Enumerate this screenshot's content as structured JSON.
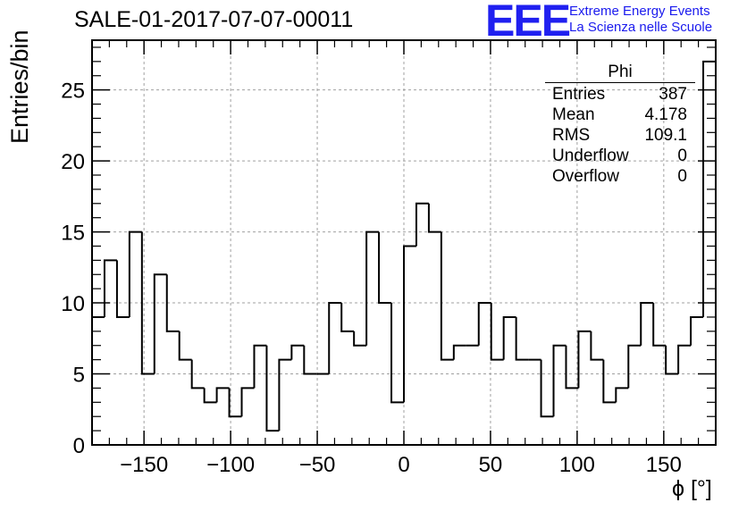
{
  "header": {
    "title": "SALE-01-2017-07-07-00011",
    "logo": "EEE",
    "logo_line1": "Extreme Energy Events",
    "logo_line2": "La Scienza nelle Scuole"
  },
  "stats": {
    "title": "Phi",
    "rows": [
      {
        "label": "Entries",
        "value": "387"
      },
      {
        "label": "Mean",
        "value": "4.178"
      },
      {
        "label": "RMS",
        "value": "109.1"
      },
      {
        "label": "Underflow",
        "value": "0"
      },
      {
        "label": "Overflow",
        "value": "0"
      }
    ]
  },
  "colors": {
    "line": "#000000",
    "grid": "#a0a0a0",
    "logo": "#2020f0"
  },
  "chart_data": {
    "type": "bar",
    "title": "SALE-01-2017-07-07-00011",
    "xlabel": "ϕ [°]",
    "ylabel": "Entries/bin",
    "xlim": [
      -180,
      180
    ],
    "ylim": [
      0,
      28.5
    ],
    "bin_width": 7.2,
    "grid": true,
    "xticks": [
      -150,
      -100,
      -50,
      0,
      50,
      100,
      150
    ],
    "xtick_labels": [
      "−150",
      "−100",
      "−50",
      "0",
      "50",
      "100",
      "150"
    ],
    "yticks": [
      0,
      5,
      10,
      15,
      20,
      25
    ],
    "ytick_labels": [
      "0",
      "5",
      "10",
      "15",
      "20",
      "25"
    ],
    "values": [
      9,
      13,
      9,
      15,
      5,
      12,
      8,
      6,
      4,
      3,
      4,
      2,
      4,
      7,
      1,
      6,
      7,
      5,
      5,
      10,
      8,
      7,
      15,
      10,
      3,
      14,
      17,
      15,
      6,
      7,
      7,
      10,
      6,
      9,
      6,
      6,
      2,
      7,
      4,
      8,
      6,
      3,
      4,
      7,
      10,
      7,
      5,
      7,
      9,
      27
    ]
  }
}
